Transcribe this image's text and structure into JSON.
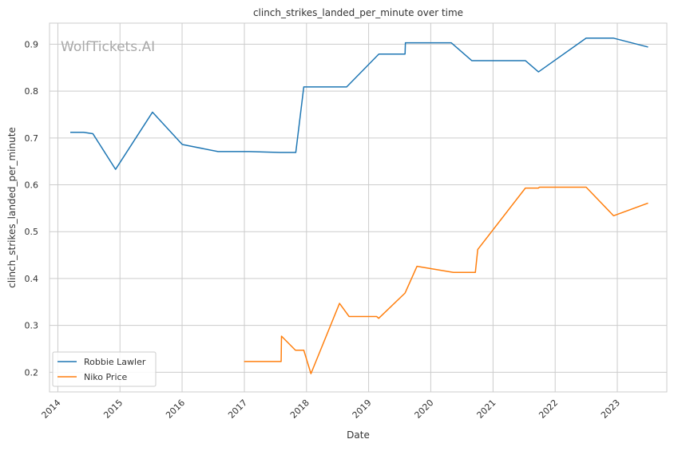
{
  "chart_data": {
    "type": "line",
    "title": "clinch_strikes_landed_per_minute over time",
    "xlabel": "Date",
    "ylabel": "clinch_strikes_landed_per_minute",
    "x_type": "date",
    "xlim": [
      "2013-11-13",
      "2023-10-19"
    ],
    "ylim": [
      0.158,
      0.945
    ],
    "x_ticks": [
      {
        "label": "2014",
        "date": "2014-01-01"
      },
      {
        "label": "2015",
        "date": "2015-01-01"
      },
      {
        "label": "2016",
        "date": "2016-01-01"
      },
      {
        "label": "2017",
        "date": "2017-01-01"
      },
      {
        "label": "2018",
        "date": "2018-01-01"
      },
      {
        "label": "2019",
        "date": "2019-01-01"
      },
      {
        "label": "2020",
        "date": "2020-01-01"
      },
      {
        "label": "2021",
        "date": "2021-01-01"
      },
      {
        "label": "2022",
        "date": "2022-01-01"
      },
      {
        "label": "2023",
        "date": "2023-01-01"
      }
    ],
    "y_ticks": [
      {
        "label": "0.2",
        "value": 0.2
      },
      {
        "label": "0.3",
        "value": 0.3
      },
      {
        "label": "0.4",
        "value": 0.4
      },
      {
        "label": "0.5",
        "value": 0.5
      },
      {
        "label": "0.6",
        "value": 0.6
      },
      {
        "label": "0.7",
        "value": 0.7
      },
      {
        "label": "0.8",
        "value": 0.8
      },
      {
        "label": "0.9",
        "value": 0.9
      }
    ],
    "grid": true,
    "legend_position": "lower-left",
    "watermark": "WolfTickets.AI",
    "series": [
      {
        "name": "Robbie Lawler",
        "color": "#1f77b4",
        "points": [
          {
            "date": "2014-03-15",
            "value": 0.712
          },
          {
            "date": "2014-06-01",
            "value": 0.712
          },
          {
            "date": "2014-07-26",
            "value": 0.709
          },
          {
            "date": "2014-12-06",
            "value": 0.633
          },
          {
            "date": "2015-07-11",
            "value": 0.755
          },
          {
            "date": "2016-01-02",
            "value": 0.686
          },
          {
            "date": "2016-07-30",
            "value": 0.671
          },
          {
            "date": "2017-01-28",
            "value": 0.671
          },
          {
            "date": "2017-07-29",
            "value": 0.669
          },
          {
            "date": "2017-10-30",
            "value": 0.669
          },
          {
            "date": "2017-12-16",
            "value": 0.809
          },
          {
            "date": "2018-08-25",
            "value": 0.809
          },
          {
            "date": "2019-03-02",
            "value": 0.879
          },
          {
            "date": "2019-08-03",
            "value": 0.879
          },
          {
            "date": "2019-08-05",
            "value": 0.903
          },
          {
            "date": "2020-05-01",
            "value": 0.903
          },
          {
            "date": "2020-08-29",
            "value": 0.865
          },
          {
            "date": "2021-07-10",
            "value": 0.865
          },
          {
            "date": "2021-09-25",
            "value": 0.841
          },
          {
            "date": "2022-07-02",
            "value": 0.913
          },
          {
            "date": "2022-12-10",
            "value": 0.913
          },
          {
            "date": "2023-07-01",
            "value": 0.894
          }
        ]
      },
      {
        "name": "Niko Price",
        "color": "#ff7f0e",
        "points": [
          {
            "date": "2016-12-30",
            "value": 0.223
          },
          {
            "date": "2017-08-05",
            "value": 0.223
          },
          {
            "date": "2017-08-07",
            "value": 0.277
          },
          {
            "date": "2017-10-28",
            "value": 0.247
          },
          {
            "date": "2017-12-16",
            "value": 0.247
          },
          {
            "date": "2018-01-27",
            "value": 0.197
          },
          {
            "date": "2018-07-14",
            "value": 0.347
          },
          {
            "date": "2018-09-08",
            "value": 0.319
          },
          {
            "date": "2019-02-17",
            "value": 0.319
          },
          {
            "date": "2019-03-01",
            "value": 0.315
          },
          {
            "date": "2019-08-03",
            "value": 0.369
          },
          {
            "date": "2019-10-12",
            "value": 0.426
          },
          {
            "date": "2020-05-13",
            "value": 0.413
          },
          {
            "date": "2020-09-19",
            "value": 0.413
          },
          {
            "date": "2020-10-03",
            "value": 0.462
          },
          {
            "date": "2021-07-10",
            "value": 0.593
          },
          {
            "date": "2021-09-25",
            "value": 0.593
          },
          {
            "date": "2021-09-30",
            "value": 0.595
          },
          {
            "date": "2022-07-02",
            "value": 0.595
          },
          {
            "date": "2022-12-10",
            "value": 0.534
          },
          {
            "date": "2023-07-01",
            "value": 0.561
          }
        ]
      }
    ]
  }
}
